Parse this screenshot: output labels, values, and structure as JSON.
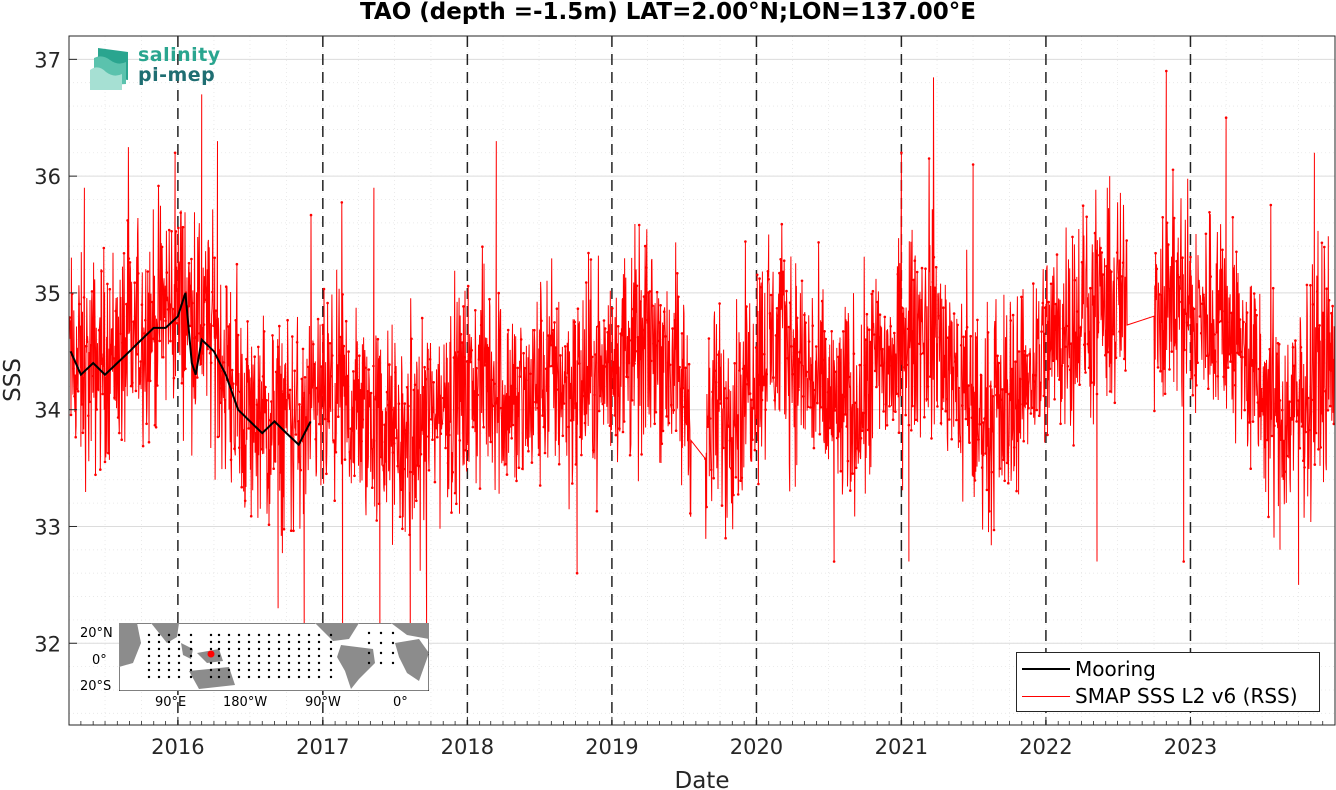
{
  "colors": {
    "mooring": "#000000",
    "smap": "#ff0000",
    "grid": "#dcdcdc",
    "land": "#8c8c8c"
  },
  "logo": {
    "line1": "salinity",
    "line2": "pi-mep"
  },
  "chart_data": {
    "type": "line",
    "title": "TAO (depth =-1.5m) LAT=2.00°N;LON=137.00°E",
    "xlabel": "Date",
    "ylabel": "SSS",
    "xlim": [
      "2015-04-01",
      "2024-01-01"
    ],
    "ylim": [
      31.3,
      37.2
    ],
    "yticks": [
      32,
      33,
      34,
      35,
      36,
      37
    ],
    "xticks": [
      "2016",
      "2017",
      "2018",
      "2019",
      "2020",
      "2021",
      "2022",
      "2023"
    ],
    "year_separators": [
      "2016-01-01",
      "2017-01-01",
      "2018-01-01",
      "2019-01-01",
      "2020-01-01",
      "2021-01-01",
      "2022-01-01",
      "2023-01-01"
    ],
    "grid": true,
    "legend_position": "bottom-right",
    "series": [
      {
        "name": "Mooring",
        "style": "line",
        "points": [
          [
            "2015-04-05",
            34.5
          ],
          [
            "2015-05-01",
            34.3
          ],
          [
            "2015-06-01",
            34.4
          ],
          [
            "2015-07-01",
            34.3
          ],
          [
            "2015-08-01",
            34.4
          ],
          [
            "2015-09-01",
            34.5
          ],
          [
            "2015-10-01",
            34.6
          ],
          [
            "2015-11-01",
            34.7
          ],
          [
            "2015-12-01",
            34.7
          ],
          [
            "2016-01-01",
            34.8
          ],
          [
            "2016-01-20",
            35.0
          ],
          [
            "2016-02-05",
            34.4
          ],
          [
            "2016-02-15",
            34.3
          ],
          [
            "2016-03-01",
            34.6
          ],
          [
            "2016-04-01",
            34.5
          ],
          [
            "2016-05-01",
            34.3
          ],
          [
            "2016-06-01",
            34.0
          ],
          [
            "2016-07-01",
            33.9
          ],
          [
            "2016-08-01",
            33.8
          ],
          [
            "2016-09-01",
            33.9
          ],
          [
            "2016-10-01",
            33.8
          ],
          [
            "2016-11-01",
            33.7
          ],
          [
            "2016-12-01",
            33.9
          ]
        ]
      },
      {
        "name": "SMAP SSS L2 v6 (RSS)",
        "style": "line-marker",
        "monthly_mean": [
          [
            "2015-04",
            34.4
          ],
          [
            "2015-05",
            34.3
          ],
          [
            "2015-06",
            34.4
          ],
          [
            "2015-07",
            34.5
          ],
          [
            "2015-08",
            34.5
          ],
          [
            "2015-09",
            34.6
          ],
          [
            "2015-10",
            34.7
          ],
          [
            "2015-11",
            34.8
          ],
          [
            "2015-12",
            34.9
          ],
          [
            "2016-01",
            34.9
          ],
          [
            "2016-02",
            34.8
          ],
          [
            "2016-03",
            34.7
          ],
          [
            "2016-04",
            34.5
          ],
          [
            "2016-05",
            34.2
          ],
          [
            "2016-06",
            34.0
          ],
          [
            "2016-07",
            33.9
          ],
          [
            "2016-08",
            33.8
          ],
          [
            "2016-09",
            33.9
          ],
          [
            "2016-10",
            33.9
          ],
          [
            "2016-11",
            33.8
          ],
          [
            "2016-12",
            34.0
          ],
          [
            "2017-01",
            34.0
          ],
          [
            "2017-02",
            34.1
          ],
          [
            "2017-03",
            34.0
          ],
          [
            "2017-04",
            33.9
          ],
          [
            "2017-05",
            33.9
          ],
          [
            "2017-06",
            33.8
          ],
          [
            "2017-07",
            33.7
          ],
          [
            "2017-08",
            33.7
          ],
          [
            "2017-09",
            33.9
          ],
          [
            "2017-10",
            34.0
          ],
          [
            "2017-11",
            34.1
          ],
          [
            "2017-12",
            34.1
          ],
          [
            "2018-01",
            34.2
          ],
          [
            "2018-02",
            34.3
          ],
          [
            "2018-03",
            34.2
          ],
          [
            "2018-04",
            34.1
          ],
          [
            "2018-05",
            34.0
          ],
          [
            "2018-06",
            34.1
          ],
          [
            "2018-07",
            34.3
          ],
          [
            "2018-08",
            34.3
          ],
          [
            "2018-09",
            34.2
          ],
          [
            "2018-10",
            34.2
          ],
          [
            "2018-11",
            34.3
          ],
          [
            "2018-12",
            34.3
          ],
          [
            "2019-01",
            34.4
          ],
          [
            "2019-02",
            34.5
          ],
          [
            "2019-03",
            34.5
          ],
          [
            "2019-04",
            34.6
          ],
          [
            "2019-05",
            34.5
          ],
          [
            "2019-06",
            34.3
          ],
          [
            "2019-07",
            34.0
          ],
          [
            "2019-08",
            33.6
          ],
          [
            "2019-09",
            33.9
          ],
          [
            "2019-10",
            34.0
          ],
          [
            "2019-11",
            34.1
          ],
          [
            "2019-12",
            34.3
          ],
          [
            "2020-01",
            34.5
          ],
          [
            "2020-02",
            34.6
          ],
          [
            "2020-03",
            34.6
          ],
          [
            "2020-04",
            34.4
          ],
          [
            "2020-05",
            34.3
          ],
          [
            "2020-06",
            34.1
          ],
          [
            "2020-07",
            34.0
          ],
          [
            "2020-08",
            34.0
          ],
          [
            "2020-09",
            34.1
          ],
          [
            "2020-10",
            34.3
          ],
          [
            "2020-11",
            34.4
          ],
          [
            "2020-12",
            34.4
          ],
          [
            "2021-01",
            34.6
          ],
          [
            "2021-02",
            34.7
          ],
          [
            "2021-03",
            34.8
          ],
          [
            "2021-04",
            34.5
          ],
          [
            "2021-05",
            34.3
          ],
          [
            "2021-06",
            34.1
          ],
          [
            "2021-07",
            33.9
          ],
          [
            "2021-08",
            33.9
          ],
          [
            "2021-09",
            34.0
          ],
          [
            "2021-10",
            34.2
          ],
          [
            "2021-11",
            34.3
          ],
          [
            "2021-12",
            34.5
          ],
          [
            "2022-01",
            34.6
          ],
          [
            "2022-02",
            34.7
          ],
          [
            "2022-03",
            34.8
          ],
          [
            "2022-04",
            34.8
          ],
          [
            "2022-05",
            34.8
          ],
          [
            "2022-06",
            34.9
          ],
          [
            "2022-07",
            34.9
          ],
          [
            "2022-08",
            34.9
          ],
          [
            "2022-09",
            35.0
          ],
          [
            "2022-10",
            35.0
          ],
          [
            "2022-11",
            35.0
          ],
          [
            "2022-12",
            34.9
          ],
          [
            "2023-01",
            34.7
          ],
          [
            "2023-02",
            34.8
          ],
          [
            "2023-03",
            34.9
          ],
          [
            "2023-04",
            34.7
          ],
          [
            "2023-05",
            34.5
          ],
          [
            "2023-06",
            34.2
          ],
          [
            "2023-07",
            34.0
          ],
          [
            "2023-08",
            34.0
          ],
          [
            "2023-09",
            33.9
          ],
          [
            "2023-10",
            34.1
          ],
          [
            "2023-11",
            34.3
          ],
          [
            "2023-12",
            34.5
          ]
        ],
        "spread_typical": 0.6,
        "data_gaps": [
          [
            "2019-07-20",
            "2019-08-25"
          ],
          [
            "2022-07-25",
            "2022-10-01"
          ]
        ],
        "notable_points": [
          [
            "2015-05-10",
            35.9
          ],
          [
            "2015-12-25",
            36.2
          ],
          [
            "2016-03-01",
            36.7
          ],
          [
            "2016-04-10",
            36.3
          ],
          [
            "2016-09-10",
            32.3
          ],
          [
            "2016-11-15",
            32.1
          ],
          [
            "2017-02-20",
            31.9
          ],
          [
            "2017-05-10",
            35.9
          ],
          [
            "2017-05-25",
            31.9
          ],
          [
            "2017-08-10",
            31.9
          ],
          [
            "2017-09-20",
            32.1
          ],
          [
            "2018-03-15",
            36.3
          ],
          [
            "2018-10-05",
            32.6
          ],
          [
            "2019-02-20",
            35.3
          ],
          [
            "2019-10-15",
            32.9
          ],
          [
            "2020-02-01",
            35.5
          ],
          [
            "2020-07-15",
            32.7
          ],
          [
            "2021-01-01",
            36.2
          ],
          [
            "2021-01-20",
            32.7
          ],
          [
            "2021-07-01",
            36.1
          ],
          [
            "2022-05-10",
            32.7
          ],
          [
            "2022-11-01",
            36.9
          ],
          [
            "2022-12-15",
            32.7
          ],
          [
            "2023-04-01",
            36.5
          ],
          [
            "2023-08-15",
            32.8
          ],
          [
            "2023-10-01",
            32.5
          ],
          [
            "2023-11-10",
            36.2
          ]
        ]
      }
    ],
    "inset_map": {
      "lat_labels": [
        "20°N",
        "0°",
        "20°S"
      ],
      "lon_labels": [
        "90°E",
        "180°W",
        "90°W",
        "0°"
      ],
      "marker_lat": 2.0,
      "marker_lon": 137.0
    }
  }
}
